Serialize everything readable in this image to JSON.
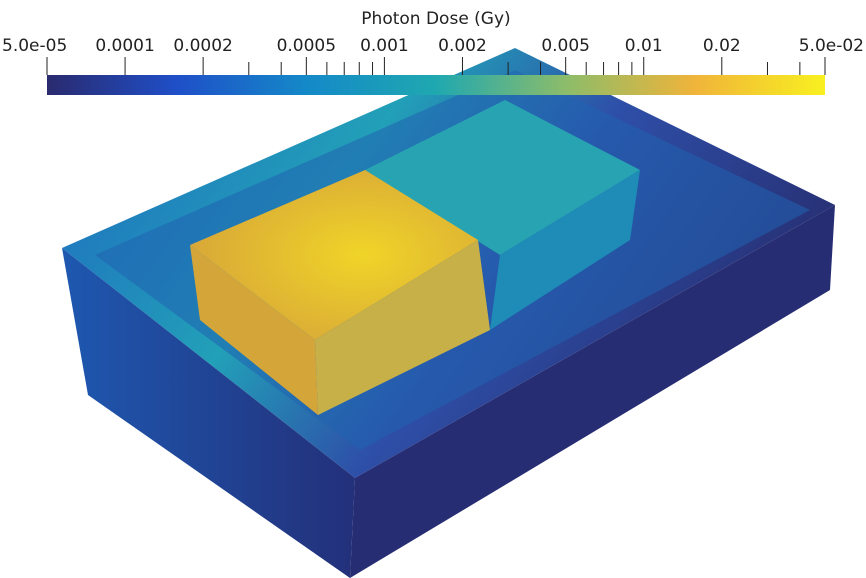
{
  "chart_data": {
    "type": "colorbar",
    "title": "Photon Dose (Gy)",
    "log_scale": true,
    "xlim": [
      5e-05,
      0.05
    ],
    "xticks": [
      {
        "value": 5e-05,
        "label": "5.0e-05"
      },
      0.0001,
      0.0002,
      0.0005,
      0.001,
      0.002,
      0.005,
      0.01,
      0.02,
      {
        "value": 0.05,
        "label": "5.0e-02"
      }
    ],
    "minor_ticks": [
      0.0003,
      0.0004,
      0.0006,
      0.0007,
      0.0008,
      0.0009,
      0.003,
      0.004,
      0.006,
      0.007,
      0.008,
      0.009,
      0.03,
      0.04
    ],
    "colors": [
      "#2a2a6e",
      "#1f4fc8",
      "#1489c8",
      "#1fa8b0",
      "#8cbc6a",
      "#f0b43a",
      "#f8f020"
    ]
  }
}
